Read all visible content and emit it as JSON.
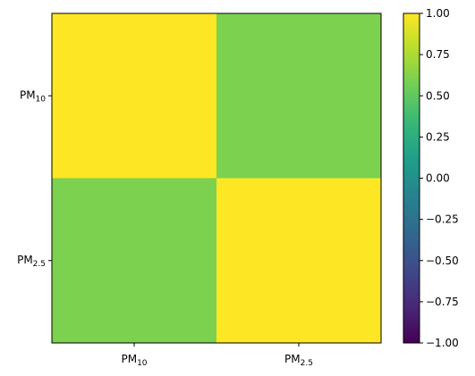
{
  "chart_data": {
    "type": "heatmap",
    "title": "",
    "xlabel": "",
    "ylabel": "",
    "rows": [
      {
        "base": "PM",
        "sub": "10"
      },
      {
        "base": "PM",
        "sub": "2.5"
      }
    ],
    "columns": [
      {
        "base": "PM",
        "sub": "10"
      },
      {
        "base": "PM",
        "sub": "2.5"
      }
    ],
    "values": [
      [
        1.0,
        0.6
      ],
      [
        0.6,
        1.0
      ]
    ],
    "colorbar": {
      "colormap": "viridis",
      "vmin": -1.0,
      "vmax": 1.0,
      "ticks": [
        "1.00",
        "0.75",
        "0.50",
        "0.25",
        "0.00",
        "−0.25",
        "−0.50",
        "−0.75",
        "−1.00"
      ],
      "tick_values": [
        1.0,
        0.75,
        0.5,
        0.25,
        0.0,
        -0.25,
        -0.5,
        -0.75,
        -1.0
      ]
    },
    "grid": false
  }
}
